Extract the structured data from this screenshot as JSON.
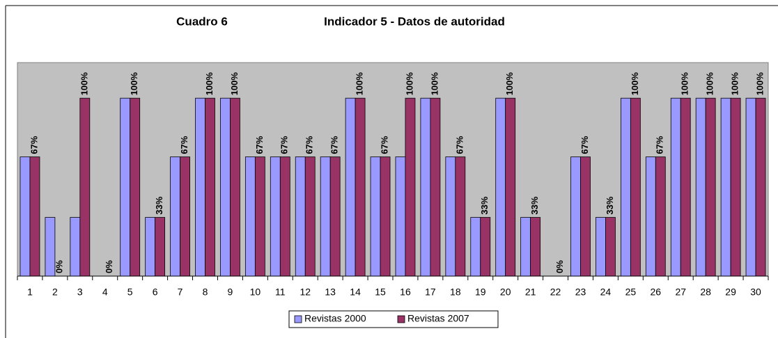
{
  "chart_data": {
    "type": "bar",
    "title": "Indicador 5 - Datos de autoridad",
    "subtitle": "Cuadro 6",
    "categories": [
      "1",
      "2",
      "3",
      "4",
      "5",
      "6",
      "7",
      "8",
      "9",
      "10",
      "11",
      "12",
      "13",
      "14",
      "15",
      "16",
      "17",
      "18",
      "19",
      "20",
      "21",
      "22",
      "23",
      "24",
      "25",
      "26",
      "27",
      "28",
      "29",
      "30"
    ],
    "series": [
      {
        "name": "Revistas 2000",
        "color": "#9999ff",
        "values": [
          67,
          33,
          33,
          0,
          100,
          33,
          67,
          100,
          100,
          67,
          67,
          67,
          67,
          100,
          67,
          67,
          100,
          67,
          33,
          100,
          33,
          0,
          67,
          33,
          100,
          67,
          100,
          100,
          100,
          100
        ]
      },
      {
        "name": "Revistas 2007",
        "color": "#993366",
        "values": [
          67,
          0,
          100,
          0,
          100,
          33,
          67,
          100,
          100,
          67,
          67,
          67,
          67,
          100,
          67,
          100,
          100,
          67,
          33,
          100,
          33,
          0,
          67,
          33,
          100,
          67,
          100,
          100,
          100,
          100
        ],
        "value_labels": [
          "67%",
          "0%",
          "100%",
          "0%",
          "100%",
          "33%",
          "67%",
          "100%",
          "100%",
          "67%",
          "67%",
          "67%",
          "67%",
          "100%",
          "67%",
          "100%",
          "100%",
          "67%",
          "33%",
          "100%",
          "33%",
          "0%",
          "67%",
          "33%",
          "100%",
          "67%",
          "100%",
          "100%",
          "100%",
          "100%"
        ]
      }
    ],
    "ylim": [
      0,
      120
    ],
    "legend": "bottom"
  }
}
